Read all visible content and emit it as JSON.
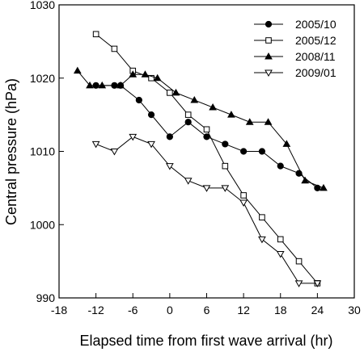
{
  "chart_data": {
    "type": "line",
    "xlabel": "Elapsed time from first wave arrival (hr)",
    "ylabel": "Central pressure (hPa)",
    "xlim": [
      -18,
      30
    ],
    "ylim": [
      990,
      1030
    ],
    "xticks": [
      -18,
      -12,
      -6,
      0,
      6,
      12,
      18,
      24,
      30
    ],
    "yticks": [
      990,
      1000,
      1010,
      1020,
      1030
    ],
    "grid": false,
    "legend_position": "top-right",
    "series": [
      {
        "name": "2005/10",
        "marker": "filled-circle",
        "x": [
          -12,
          -9,
          -8,
          -5,
          -3,
          0,
          3,
          6,
          9,
          12,
          15,
          18,
          21,
          24
        ],
        "y": [
          1019,
          1019,
          1019,
          1017,
          1015,
          1012,
          1014,
          1012,
          1011,
          1010,
          1010,
          1008,
          1007,
          1005
        ]
      },
      {
        "name": "2005/12",
        "marker": "open-square",
        "x": [
          -12,
          -9,
          -6,
          -3,
          0,
          3,
          6,
          9,
          12,
          15,
          18,
          21,
          24
        ],
        "y": [
          1026,
          1024,
          1021,
          1020,
          1018,
          1015,
          1013,
          1008,
          1004,
          1001,
          998,
          995,
          992
        ]
      },
      {
        "name": "2008/11",
        "marker": "filled-triangle-up",
        "x": [
          -15,
          -13,
          -11,
          -8,
          -6,
          -4,
          -2,
          1,
          4,
          7,
          10,
          13,
          16,
          19,
          22,
          25
        ],
        "y": [
          1021,
          1019,
          1019,
          1019,
          1020.5,
          1020.5,
          1020,
          1018,
          1017,
          1016,
          1015,
          1014,
          1014,
          1011,
          1006,
          1005
        ]
      },
      {
        "name": "2009/01",
        "marker": "open-triangle-down",
        "x": [
          -12,
          -9,
          -6,
          -3,
          0,
          3,
          6,
          9,
          12,
          15,
          18,
          21,
          24
        ],
        "y": [
          1011,
          1010,
          1012,
          1011,
          1008,
          1006,
          1005,
          1005,
          1003,
          998,
          996,
          992,
          992
        ]
      }
    ]
  }
}
